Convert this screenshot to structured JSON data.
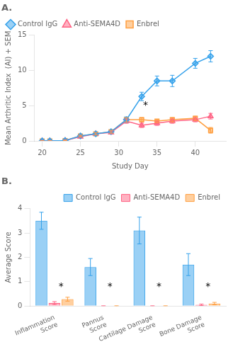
{
  "chart_data": [
    {
      "type": "line",
      "title": "A.",
      "xlabel": "Study Day",
      "ylabel": "Mean Arthritic Index  (AI) + SEM",
      "x": [
        20,
        21,
        23,
        25,
        27,
        29,
        31,
        33,
        35,
        37,
        40,
        42
      ],
      "series": [
        {
          "name": "Control IgG",
          "marker": "diamond",
          "values": [
            0.0,
            0.0,
            0.05,
            0.7,
            1.0,
            1.3,
            3.0,
            6.3,
            8.5,
            8.5,
            11.0,
            12.0
          ],
          "yerr": [
            0.0,
            0.0,
            0.05,
            0.1,
            0.15,
            0.2,
            0.4,
            0.6,
            0.7,
            0.8,
            0.7,
            0.8
          ]
        },
        {
          "name": "Anti-SEMA4D",
          "marker": "triangle",
          "values": [
            0.0,
            0.0,
            0.05,
            0.6,
            1.0,
            1.2,
            2.8,
            2.2,
            2.5,
            2.8,
            3.0,
            3.5
          ],
          "yerr": [
            0.0,
            0.0,
            0.05,
            0.1,
            0.15,
            0.2,
            0.3,
            0.3,
            0.3,
            0.3,
            0.3,
            0.4
          ]
        },
        {
          "name": "Enbrel",
          "marker": "square",
          "values": [
            0.0,
            0.0,
            0.05,
            0.7,
            1.0,
            1.3,
            3.0,
            3.0,
            2.8,
            3.0,
            3.2,
            1.5
          ],
          "yerr": [
            0.0,
            0.0,
            0.05,
            0.1,
            0.15,
            0.2,
            0.3,
            0.3,
            0.2,
            0.3,
            0.3,
            0.4
          ]
        }
      ],
      "xlim": [
        19,
        44
      ],
      "xticks": [
        20,
        25,
        30,
        35,
        40
      ],
      "ylim": [
        0,
        15
      ],
      "yticks": [
        0,
        5,
        10,
        15
      ],
      "annotations": [
        {
          "text": "*",
          "x": 33.5,
          "y": 4.3
        }
      ],
      "legend": "upper left",
      "grid": false
    },
    {
      "type": "bar",
      "title": "B.",
      "ylabel": "Average Score",
      "categories": [
        "Inflammation\nScore",
        "Pannus\nScore",
        "Cartilage Damage\nScore",
        "Bone Damage\nScore"
      ],
      "series": [
        {
          "name": "Control IgG",
          "values": [
            3.5,
            1.6,
            3.1,
            1.7
          ],
          "yerr": [
            0.35,
            0.35,
            0.55,
            0.45
          ]
        },
        {
          "name": "Anti-SEMA4D",
          "values": [
            0.12,
            0.0,
            0.0,
            0.05
          ],
          "yerr": [
            0.06,
            0.01,
            0.01,
            0.03
          ]
        },
        {
          "name": "Enbrel",
          "values": [
            0.28,
            0.0,
            0.0,
            0.1
          ],
          "yerr": [
            0.08,
            0.01,
            0.01,
            0.05
          ]
        }
      ],
      "ylim": [
        0,
        4
      ],
      "yticks": [
        0,
        1,
        2,
        3,
        4
      ],
      "annotations": [
        {
          "text": "*",
          "category": "Inflammation\nScore",
          "y": 0.58
        },
        {
          "text": "*",
          "category": "Pannus\nScore",
          "y": 0.58
        },
        {
          "text": "*",
          "category": "Cartilage Damage\nScore",
          "y": 0.58
        },
        {
          "text": "*",
          "category": "Bone Damage\nScore",
          "y": 0.58
        }
      ],
      "legend": "upper right",
      "grid": false
    }
  ]
}
